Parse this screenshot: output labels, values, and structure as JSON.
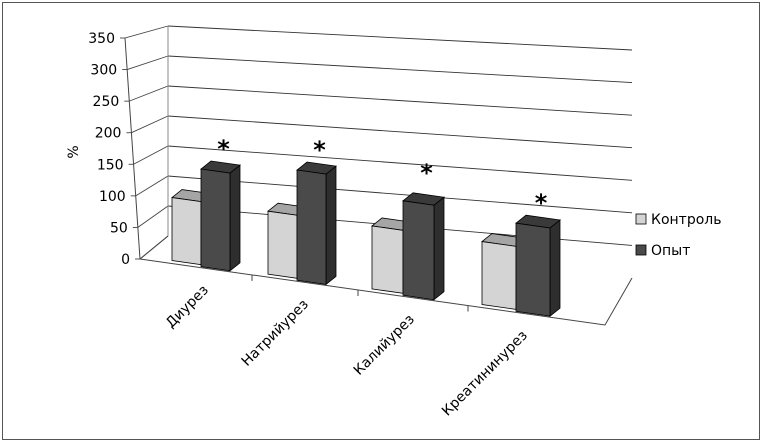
{
  "chart_data": {
    "type": "bar",
    "title": "",
    "xlabel": "",
    "ylabel": "%",
    "ylim": [
      0,
      350
    ],
    "yticks": [
      0,
      50,
      100,
      150,
      200,
      250,
      300,
      350
    ],
    "categories": [
      "Диурез",
      "Натрийурез",
      "Калийурез",
      "Креатининурез"
    ],
    "series": [
      {
        "name": "Контроль",
        "values": [
          100,
          100,
          100,
          100
        ],
        "color": "#d4d4d4"
      },
      {
        "name": "Опыт",
        "values": [
          155,
          175,
          150,
          140
        ],
        "color": "#4a4a4a"
      }
    ],
    "annotations": [
      "*",
      "*",
      "*",
      "*"
    ],
    "legend": "right",
    "grid": true,
    "style": "3d-column"
  }
}
